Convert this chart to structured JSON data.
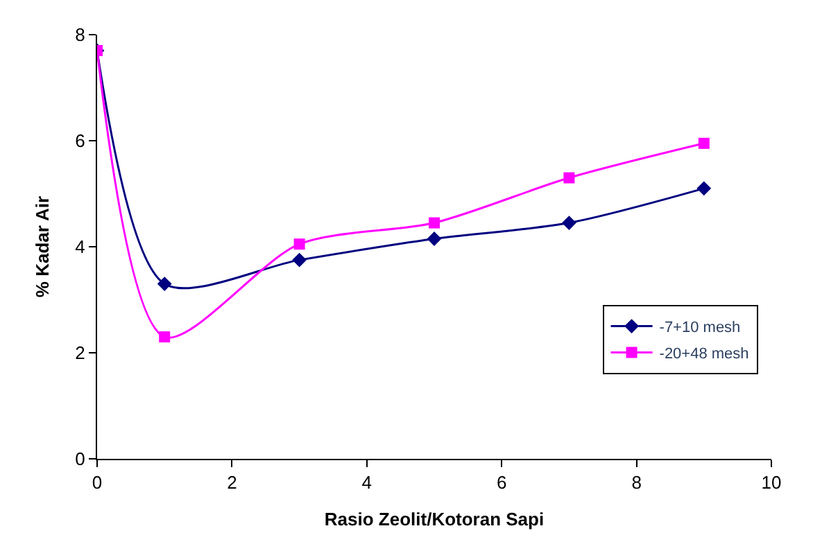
{
  "chart_data": {
    "type": "line",
    "xlabel": "Rasio Zeolit/Kotoran Sapi",
    "ylabel": "% Kadar Air",
    "x": [
      0,
      1,
      3,
      5,
      7,
      9
    ],
    "series": [
      {
        "name": "-7+10 mesh",
        "color": "#000080",
        "marker": "diamond",
        "values": [
          7.7,
          3.3,
          3.75,
          4.15,
          4.45,
          5.1
        ]
      },
      {
        "name": "-20+48 mesh",
        "color": "#ff00ff",
        "marker": "square",
        "values": [
          7.7,
          2.3,
          4.05,
          4.45,
          5.3,
          5.95
        ]
      }
    ],
    "xlim": [
      0,
      10
    ],
    "xticks": [
      0,
      2,
      4,
      6,
      8,
      10
    ],
    "ylim": [
      0,
      8
    ],
    "yticks": [
      0,
      2,
      4,
      6,
      8
    ],
    "legend": "bottom right",
    "line_style": "solid"
  }
}
